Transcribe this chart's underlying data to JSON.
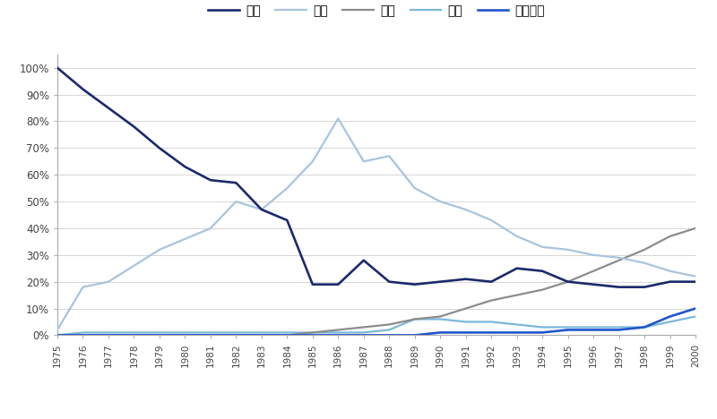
{
  "years": [
    1975,
    1976,
    1977,
    1978,
    1979,
    1980,
    1981,
    1982,
    1983,
    1984,
    1985,
    1986,
    1987,
    1988,
    1989,
    1990,
    1991,
    1992,
    1993,
    1994,
    1995,
    1996,
    1997,
    1998,
    1999,
    2000
  ],
  "usa": [
    1.0,
    0.92,
    0.85,
    0.78,
    0.7,
    0.63,
    0.58,
    0.57,
    0.47,
    0.43,
    0.19,
    0.19,
    0.28,
    0.2,
    0.19,
    0.2,
    0.21,
    0.2,
    0.25,
    0.24,
    0.2,
    0.19,
    0.18,
    0.18,
    0.2,
    0.2
  ],
  "japan": [
    0.02,
    0.18,
    0.2,
    0.26,
    0.32,
    0.36,
    0.4,
    0.5,
    0.47,
    0.55,
    0.65,
    0.81,
    0.65,
    0.67,
    0.55,
    0.5,
    0.47,
    0.43,
    0.37,
    0.33,
    0.32,
    0.3,
    0.29,
    0.27,
    0.24,
    0.22
  ],
  "korea": [
    0.0,
    0.0,
    0.0,
    0.0,
    0.0,
    0.0,
    0.0,
    0.0,
    0.0,
    0.0,
    0.01,
    0.02,
    0.03,
    0.04,
    0.06,
    0.07,
    0.1,
    0.13,
    0.15,
    0.17,
    0.2,
    0.24,
    0.28,
    0.32,
    0.37,
    0.4
  ],
  "europe": [
    0.0,
    0.01,
    0.01,
    0.01,
    0.01,
    0.01,
    0.01,
    0.01,
    0.01,
    0.01,
    0.01,
    0.01,
    0.01,
    0.02,
    0.06,
    0.06,
    0.05,
    0.05,
    0.04,
    0.03,
    0.03,
    0.03,
    0.03,
    0.03,
    0.05,
    0.07
  ],
  "taiwan": [
    0.0,
    0.0,
    0.0,
    0.0,
    0.0,
    0.0,
    0.0,
    0.0,
    0.0,
    0.0,
    0.0,
    0.0,
    0.0,
    0.0,
    0.0,
    0.01,
    0.01,
    0.01,
    0.01,
    0.01,
    0.02,
    0.02,
    0.02,
    0.03,
    0.07,
    0.1
  ],
  "colors": {
    "usa": "#1b2a6b",
    "japan": "#a8c4de",
    "korea": "#8c8c8c",
    "europe": "#7ab8d9",
    "taiwan": "#2255cc"
  },
  "labels": {
    "usa": "美国",
    "japan": "日本",
    "korea": "韩国",
    "europe": "欧洲",
    "taiwan": "中国台湾"
  },
  "yticks": [
    0.0,
    0.1,
    0.2,
    0.3,
    0.4,
    0.5,
    0.6,
    0.7,
    0.8,
    0.9,
    1.0
  ],
  "ytick_labels": [
    "0%",
    "10%",
    "20%",
    "30%",
    "40%",
    "50%",
    "60%",
    "70%",
    "80%",
    "90%",
    "100%"
  ],
  "background_color": "#ffffff",
  "line_width": 1.6,
  "figsize": [
    8.0,
    4.68
  ],
  "dpi": 100
}
